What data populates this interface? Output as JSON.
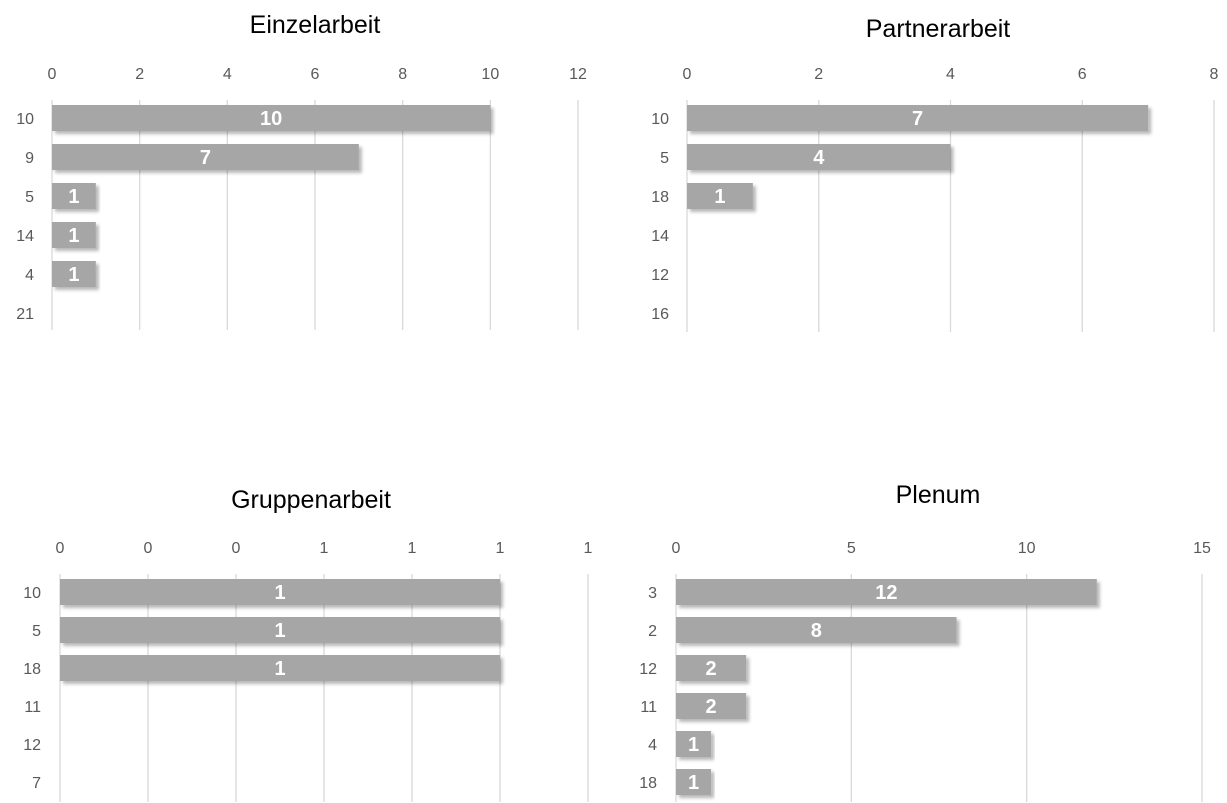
{
  "chart_data": [
    {
      "type": "bar",
      "orientation": "horizontal",
      "title": "Einzelarbeit",
      "categories": [
        "10",
        "9",
        "5",
        "14",
        "4",
        "21"
      ],
      "values": [
        10,
        7,
        1,
        1,
        1,
        null
      ],
      "data_labels": [
        "10",
        "7",
        "1",
        "1",
        "1",
        ""
      ],
      "x_ticks": [
        "0",
        "2",
        "4",
        "6",
        "8",
        "10",
        "12"
      ],
      "xlim": [
        0,
        12
      ],
      "grid": true,
      "bar_color": "#a6a6a6"
    },
    {
      "type": "bar",
      "orientation": "horizontal",
      "title": "Partnerarbeit",
      "categories": [
        "10",
        "5",
        "18",
        "14",
        "12",
        "16"
      ],
      "values": [
        7,
        4,
        1,
        null,
        null,
        null
      ],
      "data_labels": [
        "7",
        "4",
        "1",
        "",
        "",
        ""
      ],
      "x_ticks": [
        "0",
        "2",
        "4",
        "6",
        "8"
      ],
      "xlim": [
        0,
        8
      ],
      "grid": true,
      "bar_color": "#a6a6a6"
    },
    {
      "type": "bar",
      "orientation": "horizontal",
      "title": "Gruppenarbeit",
      "categories": [
        "10",
        "5",
        "18",
        "11",
        "12",
        "7"
      ],
      "values": [
        1,
        1,
        1,
        null,
        null,
        null
      ],
      "data_labels": [
        "1",
        "1",
        "1",
        "",
        "",
        ""
      ],
      "x_ticks": [
        "0",
        "0",
        "0",
        "1",
        "1",
        "1",
        "1"
      ],
      "xlim": [
        0,
        1.2
      ],
      "grid": true,
      "bar_color": "#a6a6a6"
    },
    {
      "type": "bar",
      "orientation": "horizontal",
      "title": "Plenum",
      "categories": [
        "3",
        "2",
        "12",
        "11",
        "4",
        "18"
      ],
      "values": [
        12,
        8,
        2,
        2,
        1,
        1
      ],
      "data_labels": [
        "12",
        "8",
        "2",
        "2",
        "1",
        "1"
      ],
      "x_ticks": [
        "0",
        "5",
        "10",
        "15"
      ],
      "xlim": [
        0,
        15
      ],
      "grid": true,
      "bar_color": "#a6a6a6"
    }
  ]
}
